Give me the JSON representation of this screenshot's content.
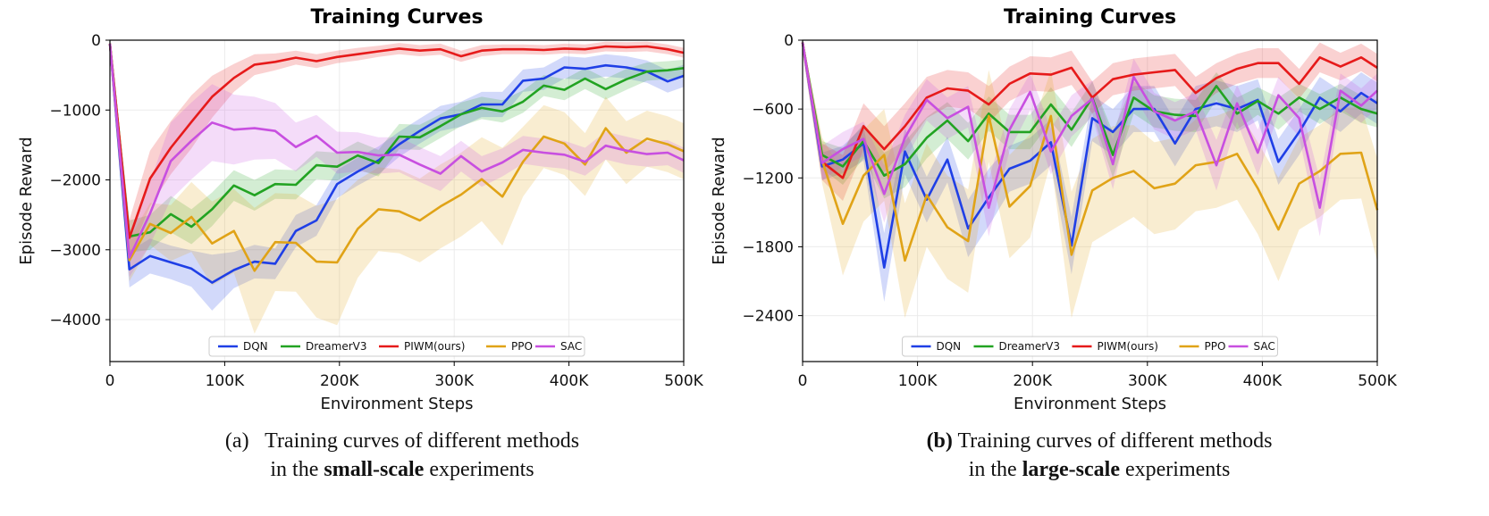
{
  "chart_data": [
    {
      "type": "line",
      "title": "Training Curves",
      "xlabel": "Environment Steps",
      "ylabel": "Episode Reward",
      "xlim": [
        0,
        500000
      ],
      "ylim": [
        -4600,
        0
      ],
      "x_ticks": [
        0,
        100000,
        200000,
        300000,
        400000,
        500000
      ],
      "x_tick_labels": [
        "0",
        "100K",
        "200K",
        "300K",
        "400K",
        "500K"
      ],
      "y_ticks": [
        0,
        -1000,
        -2000,
        -3000,
        -4000
      ],
      "y_tick_labels": [
        "0",
        "−1000",
        "−2000",
        "−3000",
        "−4000"
      ],
      "grid": true,
      "legend_position": "bottom-center",
      "x": [
        0,
        17000,
        35000,
        53000,
        71000,
        89000,
        108000,
        126000,
        144000,
        162000,
        180000,
        198000,
        216000,
        234000,
        252000,
        270000,
        288000,
        306000,
        324000,
        342000,
        360000,
        378000,
        396000,
        414000,
        432000,
        450000,
        468000,
        486000,
        500000
      ],
      "series": [
        {
          "name": "DQN",
          "color": "#1f3fe6",
          "values": [
            -50,
            -3280,
            -3090,
            -3180,
            -3270,
            -3470,
            -3290,
            -3170,
            -3200,
            -2730,
            -2580,
            -2060,
            -1880,
            -1720,
            -1490,
            -1300,
            -1120,
            -1060,
            -920,
            -920,
            -580,
            -550,
            -390,
            -410,
            -360,
            -390,
            -450,
            -590,
            -510
          ],
          "band": [
            160,
            260,
            250,
            240,
            260,
            400,
            260,
            240,
            220,
            230,
            220,
            200,
            200,
            200,
            180,
            180,
            180,
            180,
            180,
            180,
            160,
            160,
            160,
            160,
            160,
            160,
            160,
            160,
            160
          ]
        },
        {
          "name": "DreamerV3",
          "color": "#22a322",
          "values": [
            -50,
            -2810,
            -2750,
            -2490,
            -2670,
            -2420,
            -2080,
            -2220,
            -2060,
            -2070,
            -1790,
            -1810,
            -1650,
            -1760,
            -1380,
            -1390,
            -1230,
            -1060,
            -970,
            -1020,
            -880,
            -650,
            -710,
            -550,
            -700,
            -560,
            -450,
            -430,
            -400
          ],
          "band": [
            150,
            230,
            250,
            260,
            250,
            240,
            220,
            220,
            210,
            210,
            200,
            200,
            200,
            190,
            180,
            180,
            170,
            170,
            160,
            160,
            160,
            150,
            150,
            150,
            150,
            150,
            130,
            130,
            120
          ]
        },
        {
          "name": "PIWM(ours)",
          "color": "#e61a1a",
          "values": [
            -50,
            -2830,
            -1980,
            -1540,
            -1170,
            -810,
            -540,
            -350,
            -310,
            -250,
            -300,
            -240,
            -200,
            -160,
            -120,
            -150,
            -130,
            -230,
            -150,
            -130,
            -130,
            -140,
            -120,
            -130,
            -90,
            -100,
            -90,
            -130,
            -180
          ],
          "band": [
            160,
            260,
            400,
            380,
            380,
            300,
            200,
            150,
            120,
            100,
            100,
            90,
            90,
            80,
            80,
            80,
            80,
            80,
            80,
            70,
            70,
            70,
            70,
            70,
            70,
            70,
            70,
            70,
            70
          ]
        },
        {
          "name": "PPO",
          "color": "#e0a317",
          "values": [
            -50,
            -3150,
            -2630,
            -2760,
            -2530,
            -2910,
            -2730,
            -3300,
            -2890,
            -2900,
            -3170,
            -3180,
            -2700,
            -2420,
            -2450,
            -2580,
            -2380,
            -2210,
            -1990,
            -2240,
            -1740,
            -1380,
            -1480,
            -1780,
            -1260,
            -1610,
            -1410,
            -1490,
            -1590
          ],
          "band": [
            150,
            300,
            300,
            400,
            500,
            600,
            600,
            900,
            700,
            700,
            800,
            900,
            700,
            600,
            600,
            600,
            600,
            600,
            600,
            700,
            500,
            450,
            450,
            450,
            450,
            450,
            400,
            400,
            400
          ]
        },
        {
          "name": "SAC",
          "color": "#c84fe0",
          "values": [
            -50,
            -3110,
            -2480,
            -1730,
            -1440,
            -1180,
            -1280,
            -1260,
            -1300,
            -1530,
            -1370,
            -1610,
            -1600,
            -1650,
            -1640,
            -1780,
            -1910,
            -1660,
            -1880,
            -1750,
            -1570,
            -1610,
            -1640,
            -1740,
            -1510,
            -1580,
            -1630,
            -1610,
            -1720
          ],
          "band": [
            150,
            280,
            450,
            550,
            550,
            550,
            500,
            450,
            400,
            350,
            300,
            300,
            280,
            260,
            250,
            250,
            250,
            220,
            220,
            200,
            200,
            200,
            200,
            200,
            200,
            200,
            180,
            180,
            180
          ]
        }
      ]
    },
    {
      "type": "line",
      "title": "Training Curves",
      "xlabel": "Environment Steps",
      "ylabel": "Episode Reward",
      "xlim": [
        0,
        500000
      ],
      "ylim": [
        -2800,
        0
      ],
      "x_ticks": [
        0,
        100000,
        200000,
        300000,
        400000,
        500000
      ],
      "x_tick_labels": [
        "0",
        "100K",
        "200K",
        "300K",
        "400K",
        "500K"
      ],
      "y_ticks": [
        0,
        -600,
        -1200,
        -1800,
        -2400
      ],
      "y_tick_labels": [
        "0",
        "−600",
        "−1200",
        "−1800",
        "−2400"
      ],
      "grid": true,
      "legend_position": "bottom-center",
      "x": [
        0,
        17000,
        35000,
        53000,
        71000,
        89000,
        108000,
        126000,
        144000,
        162000,
        180000,
        198000,
        216000,
        234000,
        252000,
        270000,
        288000,
        306000,
        324000,
        342000,
        360000,
        378000,
        396000,
        414000,
        432000,
        450000,
        468000,
        486000,
        500000
      ],
      "series": [
        {
          "name": "DQN",
          "color": "#1f3fe6",
          "values": [
            -20,
            -1100,
            -1040,
            -900,
            -1980,
            -970,
            -1390,
            -1040,
            -1640,
            -1370,
            -1120,
            -1050,
            -890,
            -1790,
            -680,
            -800,
            -600,
            -600,
            -900,
            -600,
            -550,
            -600,
            -520,
            -1060,
            -800,
            -500,
            -620,
            -460,
            -550
          ],
          "band": [
            80,
            120,
            120,
            150,
            300,
            200,
            200,
            200,
            250,
            250,
            200,
            200,
            200,
            250,
            200,
            200,
            200,
            200,
            200,
            200,
            200,
            200,
            180,
            200,
            200,
            180,
            180,
            180,
            180
          ]
        },
        {
          "name": "DreamerV3",
          "color": "#22a322",
          "values": [
            -20,
            -1000,
            -1100,
            -880,
            -1180,
            -1080,
            -850,
            -700,
            -880,
            -640,
            -800,
            -800,
            -560,
            -780,
            -500,
            -1000,
            -500,
            -620,
            -650,
            -660,
            -400,
            -640,
            -530,
            -640,
            -500,
            -600,
            -500,
            -600,
            -640
          ],
          "band": [
            80,
            120,
            160,
            150,
            200,
            200,
            180,
            160,
            160,
            150,
            150,
            150,
            150,
            150,
            140,
            200,
            140,
            140,
            140,
            140,
            120,
            140,
            120,
            140,
            120,
            130,
            120,
            120,
            120
          ]
        },
        {
          "name": "PIWM(ours)",
          "color": "#e61a1a",
          "values": [
            -20,
            -1060,
            -1200,
            -750,
            -950,
            -750,
            -500,
            -420,
            -440,
            -560,
            -380,
            -290,
            -300,
            -240,
            -500,
            -340,
            -300,
            -280,
            -260,
            -460,
            -330,
            -250,
            -200,
            -200,
            -380,
            -150,
            -230,
            -150,
            -240
          ],
          "band": [
            80,
            160,
            200,
            200,
            200,
            200,
            180,
            160,
            160,
            160,
            150,
            150,
            150,
            150,
            140,
            140,
            140,
            140,
            140,
            140,
            130,
            130,
            130,
            130,
            130,
            130,
            120,
            120,
            120
          ]
        },
        {
          "name": "PPO",
          "color": "#e0a317",
          "values": [
            -20,
            -1050,
            -1600,
            -1180,
            -1000,
            -1920,
            -1350,
            -1630,
            -1750,
            -660,
            -1450,
            -1270,
            -660,
            -1870,
            -1310,
            -1200,
            -1140,
            -1290,
            -1250,
            -1090,
            -1060,
            -990,
            -1290,
            -1650,
            -1250,
            -1140,
            -990,
            -980,
            -1480
          ],
          "band": [
            80,
            200,
            450,
            400,
            400,
            500,
            450,
            450,
            450,
            400,
            450,
            450,
            400,
            550,
            450,
            450,
            400,
            400,
            400,
            400,
            400,
            400,
            400,
            450,
            400,
            400,
            400,
            400,
            450
          ]
        },
        {
          "name": "SAC",
          "color": "#c84fe0",
          "values": [
            -20,
            -1070,
            -950,
            -860,
            -1340,
            -850,
            -520,
            -680,
            -580,
            -1460,
            -780,
            -450,
            -970,
            -660,
            -510,
            -1080,
            -320,
            -620,
            -700,
            -620,
            -1090,
            -550,
            -980,
            -480,
            -680,
            -1460,
            -440,
            -570,
            -440
          ],
          "band": [
            80,
            150,
            150,
            150,
            250,
            200,
            180,
            180,
            180,
            250,
            180,
            160,
            200,
            180,
            160,
            220,
            160,
            160,
            160,
            160,
            220,
            160,
            200,
            160,
            160,
            250,
            150,
            150,
            150
          ]
        }
      ]
    }
  ],
  "captions": [
    {
      "pre": "(a)   Training curves of different methods",
      "line2_pre": "in the ",
      "bold": "small-scale",
      "line2_post": " experiments"
    },
    {
      "label": "(b)",
      "pre": " Training curves of different methods",
      "line2_pre": "in the ",
      "bold": "large-scale",
      "line2_post": " experiments"
    }
  ]
}
